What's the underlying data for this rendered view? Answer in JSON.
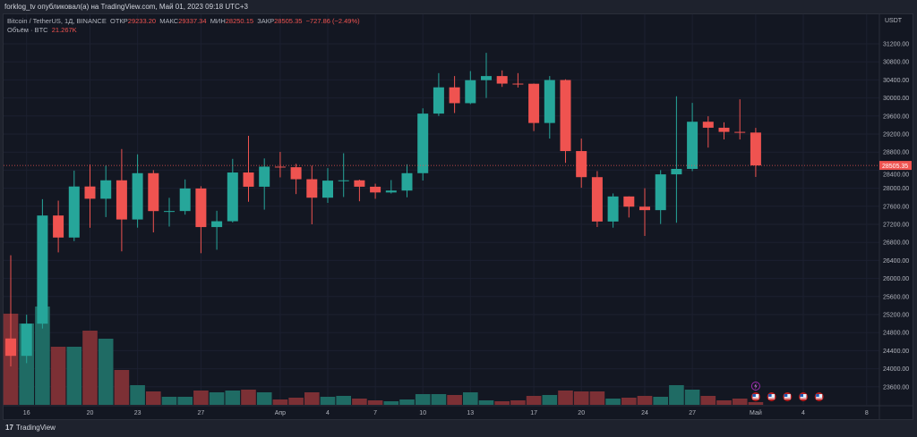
{
  "publisher_line": "forklog_tv опубликовал(а) на TradingView.com, Май 01, 2023 09:18 UTC+3",
  "legend": {
    "symbol": "Bitcoin / TetherUS, 1Д, BINANCE",
    "open_label": "ОТКР",
    "open": "29233.20",
    "high_label": "МАКС",
    "high": "29337.34",
    "low_label": "МИН",
    "low": "28250.15",
    "close_label": "ЗАКР",
    "close": "28505.35",
    "change": "−727.86 (−2.49%)",
    "volume_label": "Объём · BTC",
    "volume": "21.267K"
  },
  "footer_brand": "TradingView",
  "colors": {
    "up": "#26a69a",
    "down": "#ef5350",
    "background": "#131722",
    "vol_up": "#1f6b64",
    "vol_down": "#7c3035"
  },
  "chart_data": {
    "type": "candlestick",
    "currency": "USDT",
    "last_price_label": "28505.35",
    "ylim": [
      23400,
      31500
    ],
    "y_ticks": [
      "31200.00",
      "30800.00",
      "30400.00",
      "30000.00",
      "29600.00",
      "29200.00",
      "28800.00",
      "28400.00",
      "28000.00",
      "27600.00",
      "27200.00",
      "26800.00",
      "26400.00",
      "26000.00",
      "25600.00",
      "25200.00",
      "24800.00",
      "24400.00",
      "24000.00",
      "23600.00"
    ],
    "x_ticks": [
      {
        "label": "16",
        "day": "2023-03-16"
      },
      {
        "label": "20",
        "day": "2023-03-20"
      },
      {
        "label": "23",
        "day": "2023-03-23"
      },
      {
        "label": "27",
        "day": "2023-03-27"
      },
      {
        "label": "Апр",
        "day": "2023-04-01"
      },
      {
        "label": "4",
        "day": "2023-04-04"
      },
      {
        "label": "7",
        "day": "2023-04-07"
      },
      {
        "label": "10",
        "day": "2023-04-10"
      },
      {
        "label": "13",
        "day": "2023-04-13"
      },
      {
        "label": "17",
        "day": "2023-04-17"
      },
      {
        "label": "20",
        "day": "2023-04-20"
      },
      {
        "label": "24",
        "day": "2023-04-24"
      },
      {
        "label": "27",
        "day": "2023-04-27"
      },
      {
        "label": "Май",
        "day": "2023-05-01"
      },
      {
        "label": "4",
        "day": "2023-05-04"
      },
      {
        "label": "8",
        "day": "2023-05-08"
      }
    ],
    "columns": [
      "date",
      "open",
      "high",
      "low",
      "close",
      "volume_k"
    ],
    "candles": [
      [
        "2023-03-15",
        24670,
        26514,
        24051,
        24285,
        714
      ],
      [
        "2023-03-16",
        24285,
        25198,
        24123,
        24998,
        637
      ],
      [
        "2023-03-17",
        24998,
        27756,
        24890,
        27395,
        770
      ],
      [
        "2023-03-18",
        27395,
        27724,
        26578,
        26907,
        455
      ],
      [
        "2023-03-19",
        26907,
        28390,
        26827,
        28038,
        455
      ],
      [
        "2023-03-20",
        28038,
        28527,
        27124,
        27767,
        581
      ],
      [
        "2023-03-21",
        27767,
        28500,
        27360,
        28175,
        518
      ],
      [
        "2023-03-22",
        28175,
        28868,
        26601,
        27307,
        273
      ],
      [
        "2023-03-23",
        27307,
        28750,
        27126,
        28333,
        154
      ],
      [
        "2023-03-24",
        28333,
        28399,
        27021,
        27493,
        105
      ],
      [
        "2023-03-25",
        27493,
        27787,
        27150,
        27494,
        63
      ],
      [
        "2023-03-26",
        27494,
        28194,
        27414,
        27994,
        63
      ],
      [
        "2023-03-27",
        27994,
        28044,
        26560,
        27139,
        112
      ],
      [
        "2023-03-28",
        27139,
        27500,
        26637,
        27268,
        98
      ],
      [
        "2023-03-29",
        27268,
        28650,
        27240,
        28348,
        112
      ],
      [
        "2023-03-30",
        28348,
        29160,
        27700,
        28033,
        119
      ],
      [
        "2023-03-31",
        28033,
        28660,
        27525,
        28478,
        98
      ],
      [
        "2023-04-01",
        28478,
        28805,
        28240,
        28465,
        42
      ],
      [
        "2023-04-02",
        28465,
        28540,
        27870,
        28199,
        56
      ],
      [
        "2023-04-03",
        28199,
        28500,
        27200,
        27790,
        98
      ],
      [
        "2023-04-04",
        27790,
        28444,
        27675,
        28168,
        63
      ],
      [
        "2023-04-05",
        28168,
        28775,
        27805,
        28175,
        70
      ],
      [
        "2023-04-06",
        28175,
        28190,
        27711,
        28033,
        49
      ],
      [
        "2023-04-07",
        28033,
        28100,
        27766,
        27906,
        35
      ],
      [
        "2023-04-08",
        27906,
        28180,
        27882,
        27948,
        28
      ],
      [
        "2023-04-09",
        27948,
        28530,
        27800,
        28333,
        42
      ],
      [
        "2023-04-10",
        28333,
        29770,
        28170,
        29653,
        84
      ],
      [
        "2023-04-11",
        29653,
        30550,
        29600,
        30235,
        84
      ],
      [
        "2023-04-12",
        30235,
        30485,
        29666,
        29884,
        77
      ],
      [
        "2023-04-13",
        29884,
        30595,
        29863,
        30394,
        98
      ],
      [
        "2023-04-14",
        30394,
        31000,
        30000,
        30485,
        35
      ],
      [
        "2023-04-15",
        30485,
        30610,
        30245,
        30318,
        28
      ],
      [
        "2023-04-16",
        30318,
        30550,
        30231,
        30315,
        35
      ],
      [
        "2023-04-17",
        30315,
        30320,
        29266,
        29445,
        70
      ],
      [
        "2023-04-18",
        29445,
        30485,
        29100,
        30397,
        77
      ],
      [
        "2023-04-19",
        30397,
        30412,
        28562,
        28823,
        112
      ],
      [
        "2023-04-20",
        28823,
        29100,
        28010,
        28245,
        105
      ],
      [
        "2023-04-21",
        28245,
        28379,
        27140,
        27262,
        105
      ],
      [
        "2023-04-22",
        27262,
        27884,
        27126,
        27817,
        49
      ],
      [
        "2023-04-23",
        27817,
        27820,
        27351,
        27591,
        56
      ],
      [
        "2023-04-24",
        27591,
        28000,
        26942,
        27514,
        70
      ],
      [
        "2023-04-25",
        27514,
        28400,
        27207,
        28307,
        63
      ],
      [
        "2023-04-26",
        28307,
        30036,
        27235,
        28428,
        154
      ],
      [
        "2023-04-27",
        28428,
        29890,
        28378,
        29473,
        119
      ],
      [
        "2023-04-28",
        29473,
        29594,
        28900,
        29340,
        70
      ],
      [
        "2023-04-29",
        29340,
        29460,
        29080,
        29248,
        35
      ],
      [
        "2023-04-30",
        29248,
        29970,
        29080,
        29233,
        49
      ],
      [
        "2023-05-01",
        29233,
        29337,
        28250,
        28505,
        21.267
      ]
    ],
    "events": [
      {
        "icon": "lightning-icon",
        "day": "2023-05-01"
      },
      {
        "icon": "us-flag-icon",
        "day": "2023-05-01"
      },
      {
        "icon": "us-flag-icon",
        "day": "2023-05-02"
      },
      {
        "icon": "us-flag-icon",
        "day": "2023-05-03"
      },
      {
        "icon": "us-flag-icon",
        "day": "2023-05-04"
      },
      {
        "icon": "us-flag-icon",
        "day": "2023-05-05"
      }
    ]
  }
}
